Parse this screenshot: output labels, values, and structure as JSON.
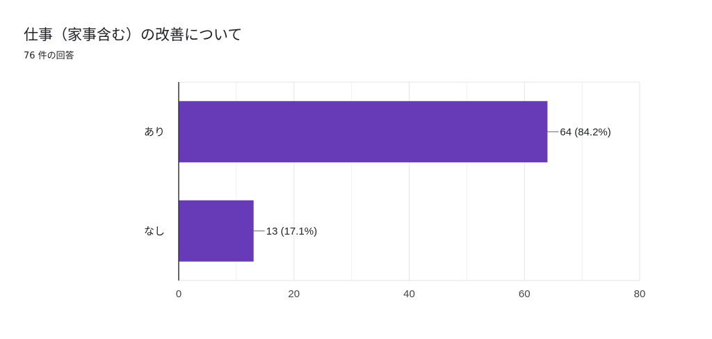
{
  "title": "仕事（家事含む）の改善について",
  "subtitle": "76 件の回答",
  "colors": {
    "bar": "#673ab7",
    "grid": "#e6e6e6",
    "axis": "#333333",
    "text": "#202124",
    "tick_text": "#444444"
  },
  "chart_data": {
    "type": "bar",
    "orientation": "horizontal",
    "categories": [
      "あり",
      "なし"
    ],
    "values": [
      64,
      13
    ],
    "data_labels": [
      "64 (84.2%)",
      "13 (17.1%)"
    ],
    "xlim": [
      0,
      80
    ],
    "xticks": [
      0,
      20,
      40,
      60,
      80
    ],
    "xtick_labels": [
      "0",
      "20",
      "40",
      "60",
      "80"
    ],
    "grid": true,
    "legend": false
  }
}
